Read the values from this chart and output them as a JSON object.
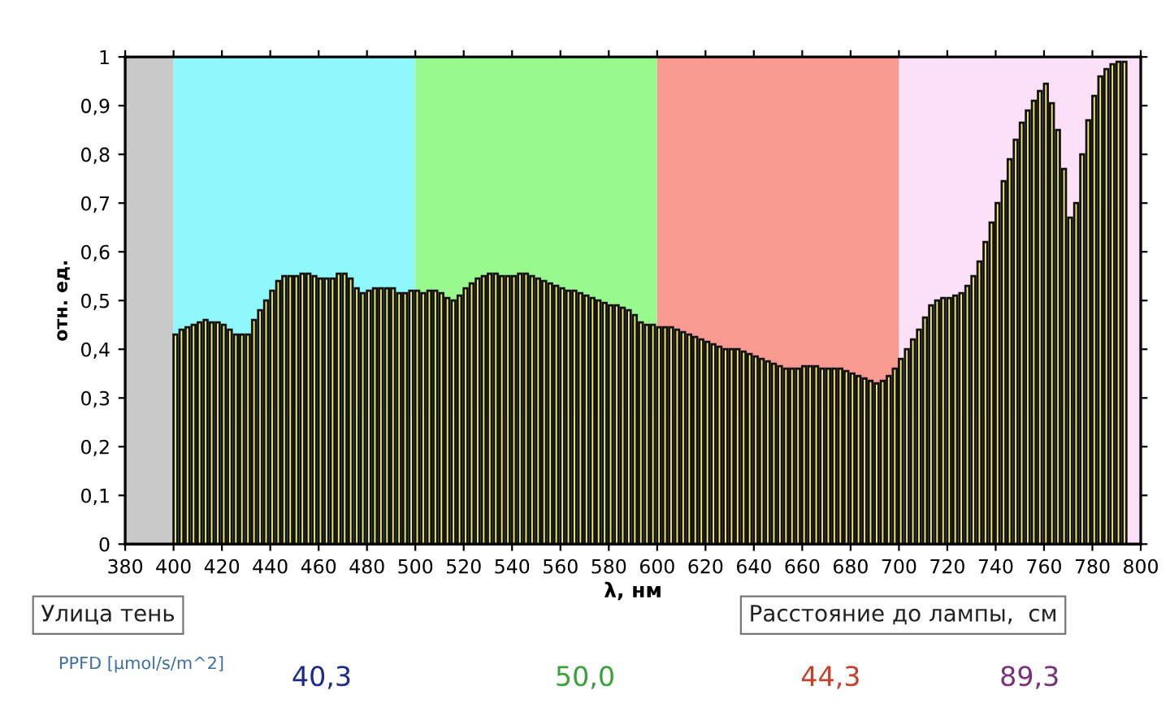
{
  "chart_data": {
    "type": "bar",
    "xlabel": "λ, нм",
    "ylabel": "отн. ед.",
    "x": [
      400,
      402.5,
      405,
      407.5,
      410,
      412.5,
      415,
      417.5,
      420,
      422.5,
      425,
      427.5,
      430,
      432.5,
      435,
      437.5,
      440,
      442.5,
      445,
      447.5,
      450,
      452.5,
      455,
      457.5,
      460,
      462.5,
      465,
      467.5,
      470,
      472.5,
      475,
      477.5,
      480,
      482.5,
      485,
      487.5,
      490,
      492.5,
      495,
      497.5,
      500,
      502.5,
      505,
      507.5,
      510,
      512.5,
      515,
      517.5,
      520,
      522.5,
      525,
      527.5,
      530,
      532.5,
      535,
      537.5,
      540,
      542.5,
      545,
      547.5,
      550,
      552.5,
      555,
      557.5,
      560,
      562.5,
      565,
      567.5,
      570,
      572.5,
      575,
      577.5,
      580,
      582.5,
      585,
      587.5,
      590,
      592.5,
      595,
      597.5,
      600,
      602.5,
      605,
      607.5,
      610,
      612.5,
      615,
      617.5,
      620,
      622.5,
      625,
      627.5,
      630,
      632.5,
      635,
      637.5,
      640,
      642.5,
      645,
      647.5,
      650,
      652.5,
      655,
      657.5,
      660,
      662.5,
      665,
      667.5,
      670,
      672.5,
      675,
      677.5,
      680,
      682.5,
      685,
      687.5,
      690,
      692.5,
      695,
      697.5,
      700,
      702.5,
      705,
      707.5,
      710,
      712.5,
      715,
      717.5,
      720,
      722.5,
      725,
      727.5,
      730,
      732.5,
      735,
      737.5,
      740,
      742.5,
      745,
      747.5,
      750,
      752.5,
      755,
      757.5,
      760,
      762.5,
      765,
      767.5,
      770,
      772.5,
      775,
      777.5,
      780,
      782.5,
      785,
      787.5,
      790,
      792.5
    ],
    "series": [
      {
        "color": "#f5ee6a",
        "values": [
          0.43,
          0.44,
          0.445,
          0.45,
          0.455,
          0.46,
          0.455,
          0.455,
          0.45,
          0.44,
          0.43,
          0.43,
          0.43,
          0.46,
          0.48,
          0.5,
          0.52,
          0.54,
          0.55,
          0.55,
          0.55,
          0.555,
          0.555,
          0.55,
          0.545,
          0.545,
          0.545,
          0.555,
          0.555,
          0.545,
          0.525,
          0.515,
          0.52,
          0.525,
          0.525,
          0.525,
          0.525,
          0.515,
          0.515,
          0.52,
          0.52,
          0.515,
          0.52,
          0.52,
          0.515,
          0.505,
          0.5,
          0.51,
          0.525,
          0.535,
          0.545,
          0.55,
          0.555,
          0.555,
          0.55,
          0.55,
          0.55,
          0.555,
          0.555,
          0.55,
          0.545,
          0.54,
          0.535,
          0.53,
          0.525,
          0.52,
          0.52,
          0.515,
          0.51,
          0.505,
          0.5,
          0.495,
          0.49,
          0.49,
          0.485,
          0.48,
          0.47,
          0.455,
          0.45,
          0.45,
          0.445,
          0.445,
          0.445,
          0.44,
          0.435,
          0.43,
          0.425,
          0.42,
          0.415,
          0.41,
          0.405,
          0.4,
          0.4,
          0.4,
          0.395,
          0.39,
          0.385,
          0.38,
          0.375,
          0.37,
          0.365,
          0.36,
          0.36,
          0.36,
          0.365,
          0.365,
          0.365,
          0.36,
          0.36,
          0.36,
          0.36,
          0.355,
          0.35,
          0.345,
          0.34,
          0.335,
          0.33,
          0.335,
          0.345,
          0.36,
          0.38,
          0.4,
          0.42,
          0.44,
          0.465,
          0.49,
          0.5,
          0.505,
          0.505,
          0.51,
          0.515,
          0.53,
          0.55,
          0.58,
          0.62,
          0.66,
          0.7,
          0.745,
          0.79,
          0.83,
          0.865,
          0.89,
          0.91,
          0.93,
          0.945,
          0.905,
          0.85,
          0.77,
          0.67,
          0.7,
          0.8,
          0.87,
          0.92,
          0.96,
          0.975,
          0.985,
          0.99,
          0.99
        ]
      }
    ],
    "xlim": [
      380,
      800
    ],
    "xticks": [
      380,
      400,
      420,
      440,
      460,
      480,
      500,
      520,
      540,
      560,
      580,
      600,
      620,
      640,
      660,
      680,
      700,
      720,
      740,
      760,
      780,
      800
    ],
    "ylim": [
      0,
      1
    ],
    "yticks": [
      0,
      {
        "value": 0.1,
        "label": "0,1"
      },
      {
        "value": 0.2,
        "label": "0,2"
      },
      {
        "value": 0.3,
        "label": "0,3"
      },
      {
        "value": 0.4,
        "label": "0,4"
      },
      {
        "value": 0.5,
        "label": "0,5"
      },
      {
        "value": 0.6,
        "label": "0,6"
      },
      {
        "value": 0.7,
        "label": "0,7"
      },
      {
        "value": 0.8,
        "label": "0,8"
      },
      {
        "value": 0.9,
        "label": "0,9"
      },
      1
    ],
    "bands": [
      {
        "axis": "x",
        "from": 380,
        "to": 400,
        "color": "#c9c9c9"
      },
      {
        "axis": "x",
        "from": 400,
        "to": 500,
        "color": "#8ef8fb"
      },
      {
        "axis": "x",
        "from": 500,
        "to": 600,
        "color": "#98f98c"
      },
      {
        "axis": "x",
        "from": 600,
        "to": 700,
        "color": "#f99a90"
      },
      {
        "axis": "x",
        "from": 700,
        "to": 800,
        "color": "#fce0f8"
      }
    ],
    "grid": false,
    "annotations": [
      "Улица тень",
      "Расстояние до лампы,  см",
      "PPFD [µmol/s/m^2]",
      "40,3",
      "50,0",
      "44,3",
      "89,3"
    ]
  }
}
